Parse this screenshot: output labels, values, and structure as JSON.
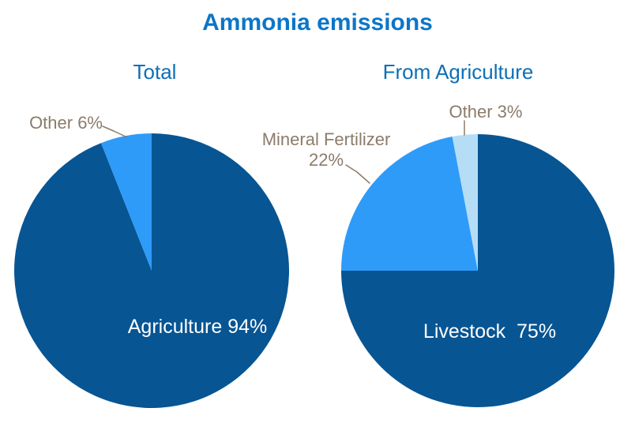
{
  "colors": {
    "title": "#0C76C8",
    "subtitle": "#0E6FB6",
    "callout_label": "#8C7B6A",
    "inside_label": "#FFFFFF",
    "dark_blue": "#075593",
    "medium_blue": "#2E9BF9",
    "pale_blue": "#B5DDF6",
    "background": "#FFFFFF"
  },
  "chart_data": {
    "type": "pie",
    "title": "Ammonia emissions",
    "legend_position": "none",
    "grid": false,
    "start_angle_deg": 0,
    "direction": "clockwise",
    "pies": [
      {
        "subtitle": "Total",
        "slices": [
          {
            "label": "Agriculture",
            "value": 94,
            "unit": "%",
            "color": "#075593",
            "display": "Agriculture 94%",
            "label_placement": "inside"
          },
          {
            "label": "Other",
            "value": 6,
            "unit": "%",
            "color": "#2E9BF9",
            "display": "Other 6%",
            "label_placement": "outside-callout"
          }
        ]
      },
      {
        "subtitle": "From Agriculture",
        "slices": [
          {
            "label": "Livestock",
            "value": 75,
            "unit": "%",
            "color": "#075593",
            "display": "Livestock  75%",
            "label_placement": "inside"
          },
          {
            "label": "Mineral Fertilizer",
            "value": 22,
            "unit": "%",
            "color": "#2E9BF9",
            "display_line1": "Mineral Fertilizer",
            "display_line2": "22%",
            "label_placement": "outside-callout"
          },
          {
            "label": "Other",
            "value": 3,
            "unit": "%",
            "color": "#B5DDF6",
            "display": "Other 3%",
            "label_placement": "outside-callout"
          }
        ]
      }
    ]
  }
}
